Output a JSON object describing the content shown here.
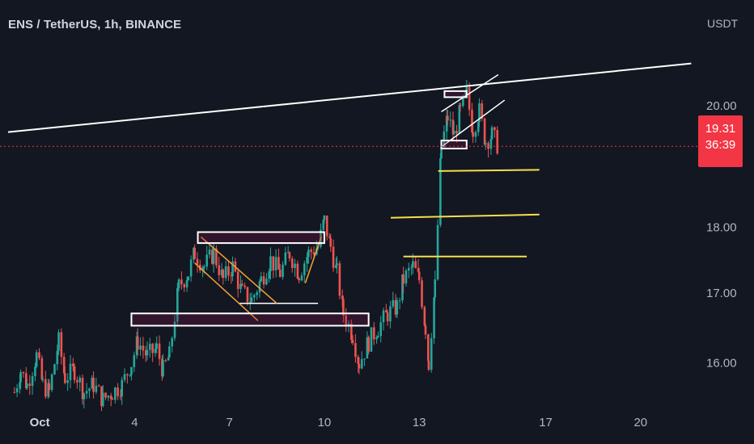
{
  "header": {
    "symbol_title": "ENS / TetherUS, 1h, BINANCE",
    "axis_unit": "USDT"
  },
  "price_tag": {
    "price": "19.31",
    "countdown": "36:39",
    "color": "#f23645"
  },
  "colors": {
    "background": "#131722",
    "candle_up": "#26a69a",
    "candle_down": "#ef5350",
    "trendline": "#ffffff",
    "support_line": "#f5e04a",
    "channel_line": "#f7a136",
    "price_line": "#f23645"
  },
  "chart_data": {
    "type": "candlestick",
    "symbol": "ENS / TetherUS",
    "interval": "1h",
    "exchange": "BINANCE",
    "currency": "USDT",
    "y_ticks": [
      "16.00",
      "17.00",
      "18.00",
      "20.00"
    ],
    "x_ticks": [
      {
        "label": "Oct",
        "day": 1,
        "bold": true
      },
      {
        "label": "4",
        "day": 4
      },
      {
        "label": "7",
        "day": 7
      },
      {
        "label": "10",
        "day": 10
      },
      {
        "label": "13",
        "day": 13
      },
      {
        "label": "17",
        "day": 17
      },
      {
        "label": "20",
        "day": 20
      }
    ],
    "x_range_days": [
      0.0,
      22.0
    ],
    "y_range_log": [
      15.5,
      21.2
    ],
    "last_price": 19.31,
    "price_path": [
      [
        0.2,
        15.6
      ],
      [
        0.4,
        15.9
      ],
      [
        0.6,
        15.7
      ],
      [
        0.9,
        16.1
      ],
      [
        1.1,
        15.7
      ],
      [
        1.3,
        15.6
      ],
      [
        1.6,
        16.3
      ],
      [
        1.8,
        15.8
      ],
      [
        2.1,
        15.9
      ],
      [
        2.4,
        15.6
      ],
      [
        2.7,
        15.7
      ],
      [
        3.0,
        15.5
      ],
      [
        3.3,
        15.6
      ],
      [
        3.6,
        15.7
      ],
      [
        3.9,
        16.0
      ],
      [
        4.1,
        16.3
      ],
      [
        4.4,
        16.1
      ],
      [
        4.7,
        16.2
      ],
      [
        4.9,
        15.9
      ],
      [
        5.1,
        16.1
      ],
      [
        5.4,
        17.1
      ],
      [
        5.7,
        17.3
      ],
      [
        5.9,
        17.6
      ],
      [
        6.2,
        17.4
      ],
      [
        6.5,
        17.6
      ],
      [
        6.8,
        17.2
      ],
      [
        7.1,
        17.4
      ],
      [
        7.4,
        17.0
      ],
      [
        7.7,
        16.9
      ],
      [
        8.0,
        17.2
      ],
      [
        8.3,
        17.5
      ],
      [
        8.6,
        17.3
      ],
      [
        8.9,
        17.6
      ],
      [
        9.2,
        17.3
      ],
      [
        9.5,
        17.6
      ],
      [
        9.8,
        17.7
      ],
      [
        10.0,
        18.1
      ],
      [
        10.2,
        17.7
      ],
      [
        10.4,
        17.3
      ],
      [
        10.6,
        16.7
      ],
      [
        10.9,
        16.4
      ],
      [
        11.1,
        16.0
      ],
      [
        11.4,
        16.3
      ],
      [
        11.7,
        16.5
      ],
      [
        12.0,
        16.7
      ],
      [
        12.3,
        16.8
      ],
      [
        12.5,
        17.2
      ],
      [
        12.8,
        17.4
      ],
      [
        13.0,
        17.2
      ],
      [
        13.2,
        16.5
      ],
      [
        13.3,
        16.0
      ],
      [
        13.5,
        17.1
      ],
      [
        13.7,
        19.3
      ],
      [
        13.9,
        19.8
      ],
      [
        14.1,
        19.5
      ],
      [
        14.3,
        19.9
      ],
      [
        14.5,
        20.2
      ],
      [
        14.7,
        19.6
      ],
      [
        14.9,
        19.9
      ],
      [
        15.1,
        19.4
      ],
      [
        15.3,
        19.5
      ],
      [
        15.5,
        19.31
      ]
    ],
    "annotations": {
      "trendline_upper": [
        [
          0.0,
          19.55
        ],
        [
          21.6,
          20.75
        ]
      ],
      "support_lines": [
        {
          "from": [
            13.6,
            18.9
          ],
          "to": [
            16.8,
            18.92
          ]
        },
        {
          "from": [
            12.1,
            18.15
          ],
          "to": [
            16.8,
            18.2
          ]
        },
        {
          "from": [
            12.5,
            17.55
          ],
          "to": [
            16.4,
            17.55
          ]
        }
      ],
      "boxes": [
        {
          "from": [
            6.0,
            17.78
          ],
          "to": [
            10.0,
            17.9
          ]
        },
        {
          "from": [
            3.9,
            16.55
          ],
          "to": [
            11.4,
            16.68
          ]
        },
        {
          "from": [
            13.8,
            20.18
          ],
          "to": [
            14.5,
            20.23
          ]
        },
        {
          "from": [
            13.7,
            19.3
          ],
          "to": [
            14.5,
            19.38
          ]
        }
      ],
      "horizontal_segments": [
        {
          "from": [
            7.3,
            16.85
          ],
          "to": [
            9.8,
            16.85
          ]
        }
      ],
      "channel_lines": [
        {
          "from": [
            6.1,
            17.85
          ],
          "to": [
            8.5,
            16.85
          ]
        },
        {
          "from": [
            5.9,
            17.45
          ],
          "to": [
            7.9,
            16.6
          ]
        },
        {
          "from": [
            9.4,
            17.15
          ],
          "to": [
            9.9,
            17.85
          ]
        }
      ],
      "wedge_lines": [
        {
          "from": [
            13.7,
            19.9
          ],
          "to": [
            15.5,
            20.55
          ]
        },
        {
          "from": [
            13.7,
            19.3
          ],
          "to": [
            15.7,
            20.1
          ]
        }
      ]
    }
  }
}
